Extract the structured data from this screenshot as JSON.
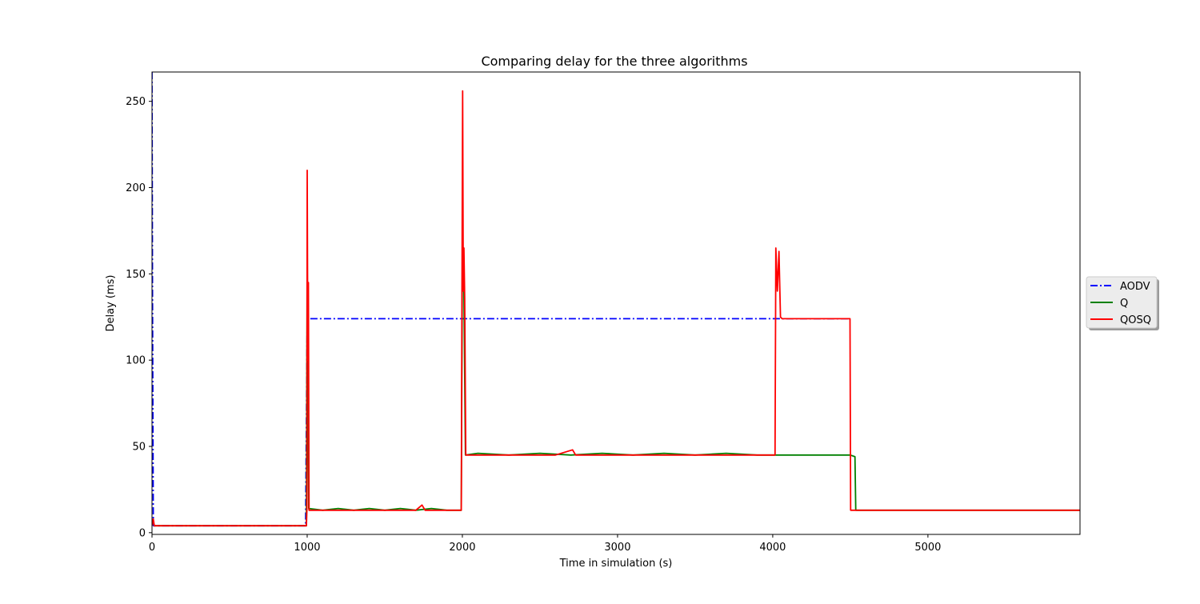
{
  "chart_data": {
    "type": "line",
    "title": "Comparing delay for the three algorithms",
    "xlabel": "Time in simulation (s)",
    "ylabel": "Delay (ms)",
    "xlim": [
      0,
      5980
    ],
    "ylim": [
      -1,
      267
    ],
    "xticks": [
      0,
      1000,
      2000,
      3000,
      4000,
      5000
    ],
    "yticks": [
      0,
      50,
      100,
      150,
      200,
      250
    ],
    "grid": false,
    "legend_position": "right, outside axes",
    "series": [
      {
        "name": "AODV",
        "color": "#0000ff",
        "style": "dashdot",
        "points": [
          [
            0,
            267
          ],
          [
            3,
            140
          ],
          [
            6,
            60
          ],
          [
            8,
            8
          ],
          [
            10,
            4
          ],
          [
            990,
            4
          ],
          [
            1000,
            124
          ],
          [
            2000,
            124
          ],
          [
            3000,
            124
          ],
          [
            4000,
            124
          ],
          [
            4500,
            124
          ]
        ]
      },
      {
        "name": "Q",
        "color": "#008000",
        "style": "solid",
        "points": [
          [
            10,
            4
          ],
          [
            995,
            4
          ],
          [
            1000,
            162
          ],
          [
            1005,
            70
          ],
          [
            1010,
            14
          ],
          [
            1100,
            13
          ],
          [
            1200,
            14
          ],
          [
            1300,
            13
          ],
          [
            1400,
            14
          ],
          [
            1500,
            13
          ],
          [
            1600,
            14
          ],
          [
            1700,
            13
          ],
          [
            1800,
            14
          ],
          [
            1900,
            13
          ],
          [
            1993,
            13
          ],
          [
            2000,
            165
          ],
          [
            2010,
            140
          ],
          [
            2020,
            45
          ],
          [
            2100,
            46
          ],
          [
            2300,
            45
          ],
          [
            2500,
            46
          ],
          [
            2700,
            45
          ],
          [
            2900,
            46
          ],
          [
            3100,
            45
          ],
          [
            3300,
            46
          ],
          [
            3500,
            45
          ],
          [
            3700,
            46
          ],
          [
            3900,
            45
          ],
          [
            4100,
            45
          ],
          [
            4300,
            45
          ],
          [
            4500,
            45
          ],
          [
            4530,
            44
          ],
          [
            4535,
            13
          ],
          [
            4700,
            13
          ],
          [
            5000,
            13
          ],
          [
            5500,
            13
          ],
          [
            5980,
            13
          ]
        ]
      },
      {
        "name": "QOSQ",
        "color": "#ff0000",
        "style": "solid",
        "points": [
          [
            0,
            4
          ],
          [
            8,
            8
          ],
          [
            15,
            4
          ],
          [
            995,
            4
          ],
          [
            998,
            13
          ],
          [
            1000,
            210
          ],
          [
            1004,
            100
          ],
          [
            1008,
            145
          ],
          [
            1012,
            13
          ],
          [
            1100,
            13
          ],
          [
            1200,
            13
          ],
          [
            1300,
            13
          ],
          [
            1400,
            13
          ],
          [
            1500,
            13
          ],
          [
            1600,
            13
          ],
          [
            1700,
            13
          ],
          [
            1740,
            16
          ],
          [
            1760,
            13
          ],
          [
            1900,
            13
          ],
          [
            1993,
            13
          ],
          [
            1998,
            160
          ],
          [
            2002,
            256
          ],
          [
            2006,
            140
          ],
          [
            2010,
            165
          ],
          [
            2015,
            135
          ],
          [
            2022,
            45
          ],
          [
            2200,
            45
          ],
          [
            2400,
            45
          ],
          [
            2600,
            45
          ],
          [
            2710,
            48
          ],
          [
            2730,
            45
          ],
          [
            3000,
            45
          ],
          [
            3300,
            45
          ],
          [
            3600,
            45
          ],
          [
            3900,
            45
          ],
          [
            4015,
            45
          ],
          [
            4020,
            165
          ],
          [
            4030,
            140
          ],
          [
            4040,
            163
          ],
          [
            4050,
            125
          ],
          [
            4060,
            124
          ],
          [
            4300,
            124
          ],
          [
            4498,
            124
          ],
          [
            4502,
            13
          ],
          [
            4700,
            13
          ],
          [
            5000,
            13
          ],
          [
            5500,
            13
          ],
          [
            5980,
            13
          ]
        ]
      }
    ]
  }
}
